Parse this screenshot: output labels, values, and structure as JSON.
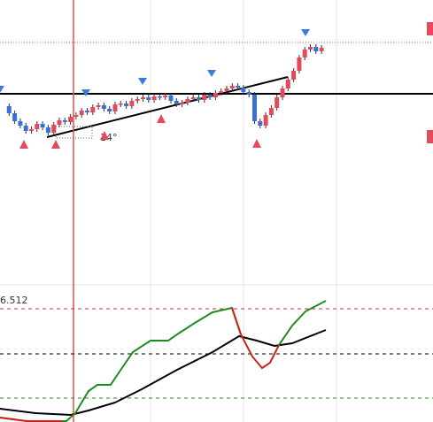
{
  "chart_panel": {
    "angle_label": "14°"
  },
  "indicator_panel": {
    "value_label": "6.512"
  }
}
